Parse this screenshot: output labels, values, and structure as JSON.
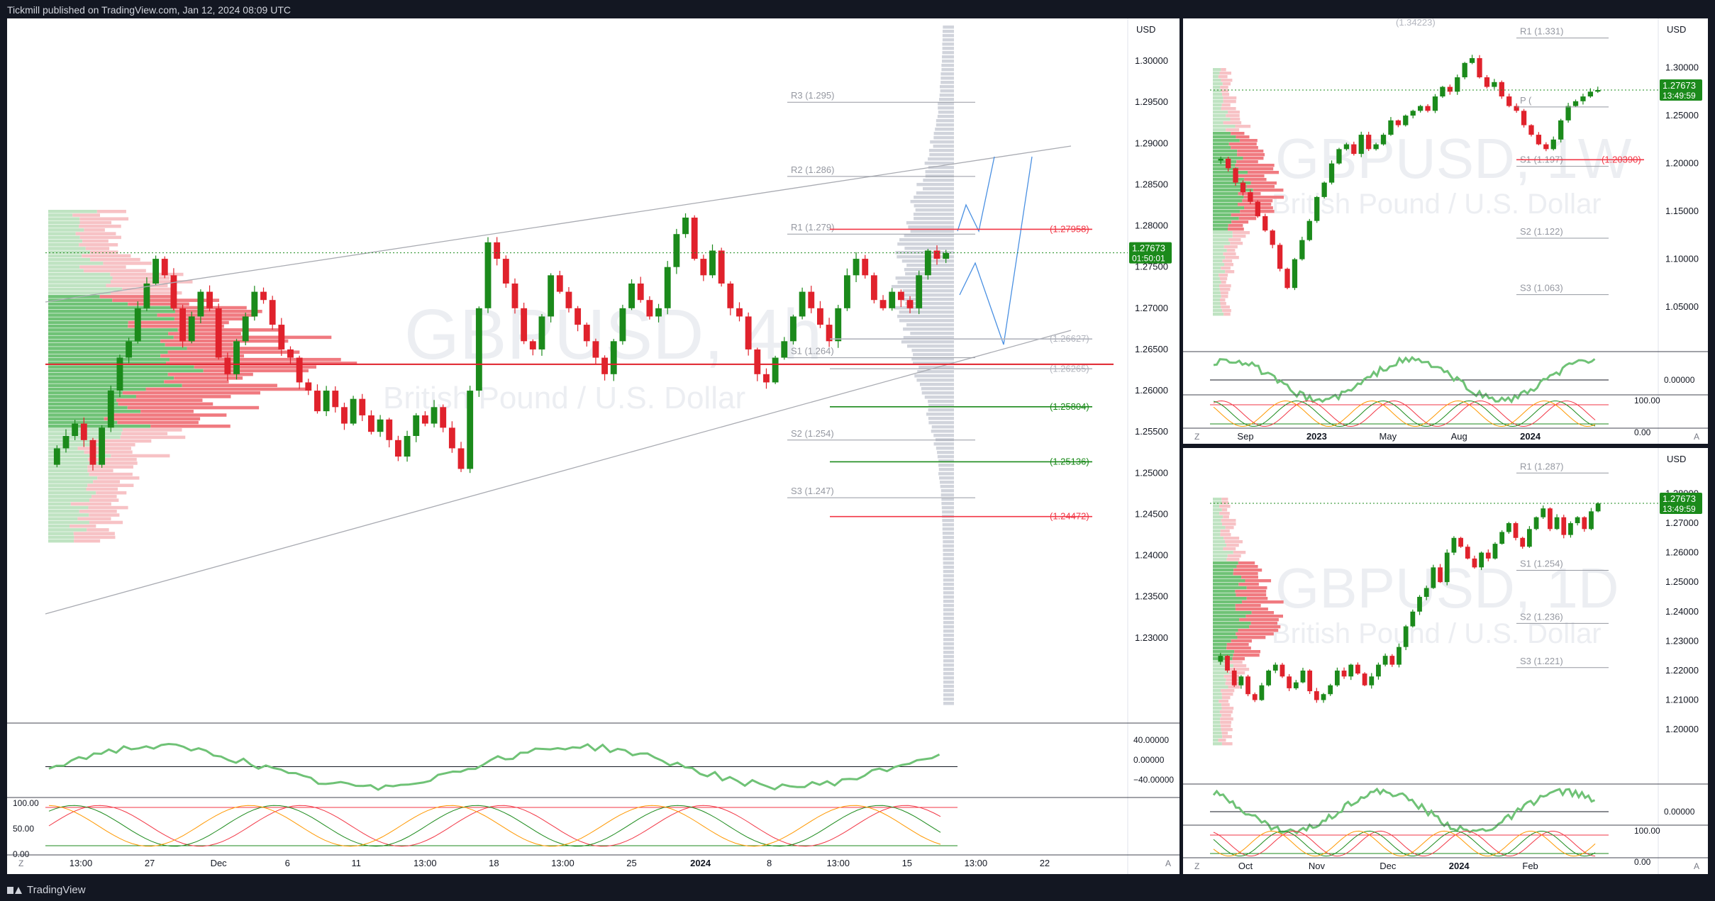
{
  "header": {
    "published": "Tickmill published on TradingView.com, Jan 12, 2024 08:09 UTC"
  },
  "footer": {
    "brand": "TradingView"
  },
  "colors": {
    "up": "#089981",
    "down": "#f23645",
    "candle_up": "#1b8a1b",
    "candle_down": "#e0222c"
  },
  "chart_data": [
    {
      "id": "main",
      "type": "candlestick",
      "watermark": {
        "symbol": "GBPUSD, 4h",
        "name": "British Pound / U.S. Dollar"
      },
      "currency": "USD",
      "ylim": [
        1.22,
        1.305
      ],
      "y_ticks": [
        "1.30000",
        "1.29500",
        "1.29000",
        "1.28500",
        "1.28000",
        "1.27500",
        "1.27000",
        "1.26500",
        "1.26000",
        "1.25500",
        "1.25000",
        "1.24500",
        "1.24000",
        "1.23500",
        "1.23000"
      ],
      "x_ticks": [
        "13:00",
        "27",
        "Dec",
        "6",
        "11",
        "13:00",
        "18",
        "13:00",
        "25",
        "2024",
        "8",
        "13:00",
        "15",
        "13:00",
        "22"
      ],
      "pivots": [
        {
          "label": "R3 (1.295)",
          "value": 1.295
        },
        {
          "label": "R2 (1.286)",
          "value": 1.286
        },
        {
          "label": "R1 (1.279)",
          "value": 1.279
        },
        {
          "label": "S1 (1.264)",
          "value": 1.264
        },
        {
          "label": "S2 (1.254)",
          "value": 1.254
        },
        {
          "label": "S3 (1.247)",
          "value": 1.247
        }
      ],
      "levels": [
        {
          "label": "1.27958",
          "value": 1.27958,
          "color": "#f23645"
        },
        {
          "label": "1.26627",
          "value": 1.26627,
          "color": "#b2b5be"
        },
        {
          "label": "1.26265",
          "value": 1.26265,
          "color": "#b2b5be"
        },
        {
          "label": "1.25804",
          "value": 1.25804,
          "color": "#1b8a1b"
        },
        {
          "label": "1.25136",
          "value": 1.25136,
          "color": "#1b8a1b"
        },
        {
          "label": "1.24472",
          "value": 1.24472,
          "color": "#f23645"
        }
      ],
      "last_price": {
        "value": "1.27673",
        "countdown": "01:50:01"
      },
      "close_path": [
        1.253,
        1.2545,
        1.256,
        1.254,
        1.251,
        1.2555,
        1.26,
        1.264,
        1.266,
        1.27,
        1.273,
        1.276,
        1.274,
        1.27,
        1.266,
        1.269,
        1.272,
        1.27,
        1.264,
        1.262,
        1.266,
        1.269,
        1.272,
        1.271,
        1.268,
        1.265,
        1.264,
        1.261,
        1.26,
        1.2575,
        1.26,
        1.258,
        1.256,
        1.259,
        1.257,
        1.255,
        1.2565,
        1.254,
        1.252,
        1.2545,
        1.257,
        1.256,
        1.258,
        1.2555,
        1.253,
        1.2505,
        1.26,
        1.27,
        1.278,
        1.276,
        1.273,
        1.27,
        1.266,
        1.265,
        1.269,
        1.274,
        1.272,
        1.27,
        1.268,
        1.266,
        1.264,
        1.262,
        1.266,
        1.27,
        1.273,
        1.271,
        1.269,
        1.27,
        1.275,
        1.279,
        1.281,
        1.276,
        1.274,
        1.277,
        1.273,
        1.27,
        1.269,
        1.265,
        1.262,
        1.261,
        1.264,
        1.266,
        1.269,
        1.272,
        1.27,
        1.268,
        1.266,
        1.27,
        1.274,
        1.276,
        1.274,
        1.271,
        1.27,
        1.272,
        1.271,
        1.27,
        1.274,
        1.277,
        1.276,
        1.2767
      ],
      "osc_ticks": [
        "40.00000",
        "0.00000",
        "−40.00000"
      ],
      "stoch_ticks": [
        "100.00",
        "50.00",
        "0.00"
      ]
    },
    {
      "id": "weekly",
      "type": "candlestick",
      "watermark": {
        "symbol": "GBPUSD, 1W",
        "name": "British Pound / U.S. Dollar"
      },
      "currency": "USD",
      "ylim": [
        1.005,
        1.35
      ],
      "y_ticks": [
        "1.30000",
        "1.25000",
        "1.20000",
        "1.15000",
        "1.10000",
        "1.05000"
      ],
      "x_ticks": [
        "Sep",
        "2023",
        "May",
        "Aug",
        "2024"
      ],
      "pivots": [
        {
          "label": "R1 (1.331)",
          "value": 1.331
        },
        {
          "label": "P (",
          "value": 1.259
        },
        {
          "label": "S1 (1.197)",
          "value": 1.197
        },
        {
          "label": "S2 (1.122)",
          "value": 1.122
        },
        {
          "label": "S3 (1.063)",
          "value": 1.063
        }
      ],
      "levels": [
        {
          "label": "1.20390",
          "value": 1.2039,
          "color": "#f23645"
        }
      ],
      "top_label": "1.34223",
      "last_price": {
        "value": "1.27673",
        "countdown": "13:49:59"
      },
      "close_path": [
        1.205,
        1.195,
        1.18,
        1.17,
        1.16,
        1.145,
        1.13,
        1.115,
        1.09,
        1.07,
        1.1,
        1.12,
        1.14,
        1.165,
        1.18,
        1.2,
        1.215,
        1.22,
        1.21,
        1.23,
        1.215,
        1.22,
        1.23,
        1.245,
        1.24,
        1.25,
        1.255,
        1.26,
        1.255,
        1.27,
        1.28,
        1.275,
        1.29,
        1.305,
        1.31,
        1.29,
        1.28,
        1.285,
        1.27,
        1.26,
        1.255,
        1.24,
        1.23,
        1.22,
        1.215,
        1.225,
        1.245,
        1.26,
        1.265,
        1.27,
        1.275,
        1.2767
      ],
      "osc_ticks": [
        "0.00000"
      ],
      "stoch_ticks": [
        "100.00",
        "0.00"
      ]
    },
    {
      "id": "daily",
      "type": "candlestick",
      "watermark": {
        "symbol": "GBPUSD, 1D",
        "name": "British Pound / U.S. Dollar"
      },
      "currency": "USD",
      "ylim": [
        1.182,
        1.295
      ],
      "y_ticks": [
        "1.28000",
        "1.27000",
        "1.26000",
        "1.25000",
        "1.24000",
        "1.23000",
        "1.22000",
        "1.21000",
        "1.20000"
      ],
      "x_ticks": [
        "Oct",
        "Nov",
        "Dec",
        "2024",
        "Feb"
      ],
      "pivots": [
        {
          "label": "R1 (1.287)",
          "value": 1.287
        },
        {
          "label": "S1 (1.254)",
          "value": 1.254
        },
        {
          "label": "S2 (1.236)",
          "value": 1.236
        },
        {
          "label": "S3 (1.221)",
          "value": 1.221
        }
      ],
      "levels": [],
      "last_price": {
        "value": "1.27673",
        "countdown": "13:49:59"
      },
      "close_path": [
        1.225,
        1.22,
        1.215,
        1.218,
        1.212,
        1.21,
        1.215,
        1.22,
        1.222,
        1.218,
        1.214,
        1.216,
        1.22,
        1.213,
        1.21,
        1.212,
        1.215,
        1.22,
        1.218,
        1.222,
        1.219,
        1.215,
        1.218,
        1.222,
        1.225,
        1.222,
        1.228,
        1.235,
        1.24,
        1.245,
        1.248,
        1.255,
        1.25,
        1.26,
        1.265,
        1.262,
        1.258,
        1.255,
        1.26,
        1.258,
        1.263,
        1.267,
        1.27,
        1.265,
        1.262,
        1.268,
        1.272,
        1.275,
        1.268,
        1.272,
        1.266,
        1.27,
        1.272,
        1.268,
        1.274,
        1.2767
      ],
      "osc_ticks": [
        "0.00000"
      ],
      "stoch_ticks": [
        "100.00",
        "0.00"
      ]
    }
  ]
}
